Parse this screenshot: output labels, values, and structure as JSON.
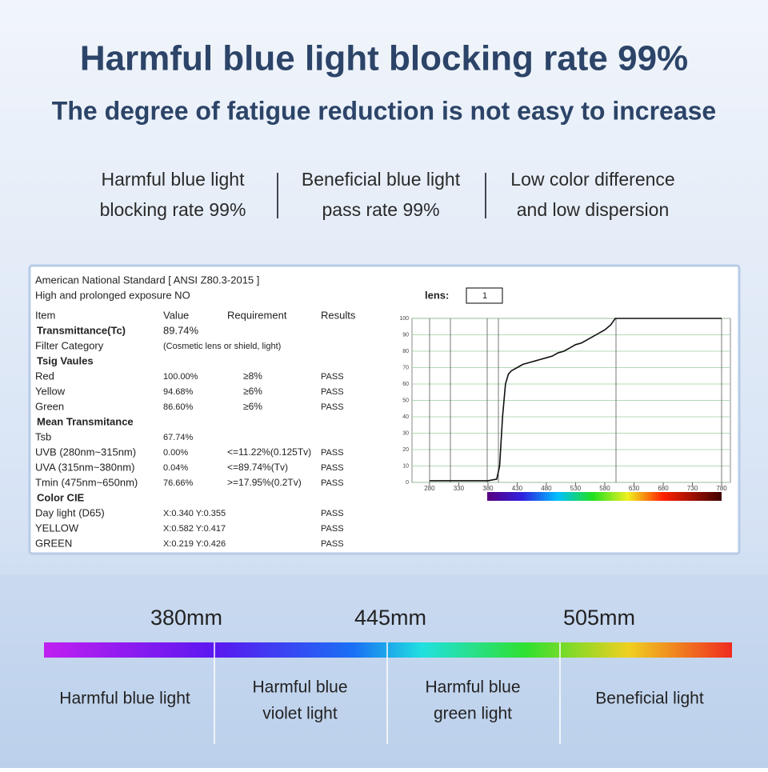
{
  "header": {
    "title": "Harmful blue light blocking rate 99%",
    "subtitle": "The degree of fatigue reduction is not easy to increase"
  },
  "features": [
    [
      "Harmful blue light",
      "blocking rate 99%"
    ],
    [
      "Beneficial blue light",
      "pass rate 99%"
    ],
    [
      "Low color difference",
      "and low dispersion"
    ]
  ],
  "report": {
    "standard": "American National Standard [ ANSI Z80.3-2015 ]",
    "exposure": "High and prolonged exposure NO",
    "lens_label": "lens:",
    "lens_value": "1",
    "columns": [
      "Item",
      "Value",
      "Requirement",
      "Results"
    ],
    "rows": [
      {
        "heading": "Transmittance(Tc)",
        "value": "89.74%"
      },
      {
        "item": "Filter Category",
        "value": "(Cosmetic lens or shield, light)"
      },
      {
        "heading": "Tsig Vaules"
      },
      {
        "item": "Red",
        "value": "100.00%",
        "requirement": "≥8%",
        "result": "PASS"
      },
      {
        "item": "Yellow",
        "value": "94.68%",
        "requirement": "≥6%",
        "result": "PASS"
      },
      {
        "item": "Green",
        "value": "86.60%",
        "requirement": "≥6%",
        "result": "PASS"
      },
      {
        "heading": "Mean Transmitance"
      },
      {
        "item": "Tsb",
        "value": "67.74%"
      },
      {
        "item": "UVB  (280nm~315nm)",
        "value": "0.00%",
        "requirement": "<=11.22%(0.125Tv)",
        "result": "PASS"
      },
      {
        "item": "UVA  (315nm~380nm)",
        "value": "0.04%",
        "requirement": "<=89.74%(Tv)",
        "result": "PASS"
      },
      {
        "item": "Tmin (475nm~650nm)",
        "value": "76.66%",
        "requirement": ">=17.95%(0.2Tv)",
        "result": "PASS"
      },
      {
        "heading": "Color CIE"
      },
      {
        "item": "Day light  (D65)",
        "value": "X:0.340 Y:0.355",
        "result": "PASS"
      },
      {
        "item": "YELLOW",
        "value": "X:0.582 Y:0.417",
        "result": "PASS"
      },
      {
        "item": "GREEN",
        "value": "X:0.219 Y:0.426",
        "result": "PASS"
      }
    ],
    "chart": {
      "type": "line",
      "x": [
        280,
        300,
        340,
        380,
        395,
        400,
        405,
        410,
        415,
        420,
        430,
        440,
        450,
        460,
        470,
        480,
        490,
        500,
        510,
        520,
        530,
        540,
        550,
        560,
        570,
        580,
        590,
        598,
        680,
        780
      ],
      "values": [
        1,
        1,
        1,
        1,
        2,
        10,
        40,
        60,
        66,
        68,
        70,
        72,
        73,
        74,
        75,
        76,
        77,
        79,
        80,
        82,
        84,
        85,
        87,
        89,
        91,
        93,
        96,
        100,
        100,
        100
      ],
      "xlim": [
        250,
        795
      ],
      "ylim": [
        0,
        100
      ],
      "xticks": [
        280,
        330,
        380,
        430,
        480,
        530,
        580,
        630,
        680,
        730,
        780
      ],
      "yticks": [
        0,
        10,
        20,
        30,
        40,
        50,
        60,
        70,
        80,
        90,
        100
      ]
    }
  },
  "scale": {
    "marks": [
      "380mm",
      "445mm",
      "505mm"
    ],
    "bands": [
      [
        "Harmful blue light"
      ],
      [
        "Harmful blue",
        "violet light"
      ],
      [
        "Harmful blue",
        "green light"
      ],
      [
        "Beneficial light"
      ]
    ]
  }
}
